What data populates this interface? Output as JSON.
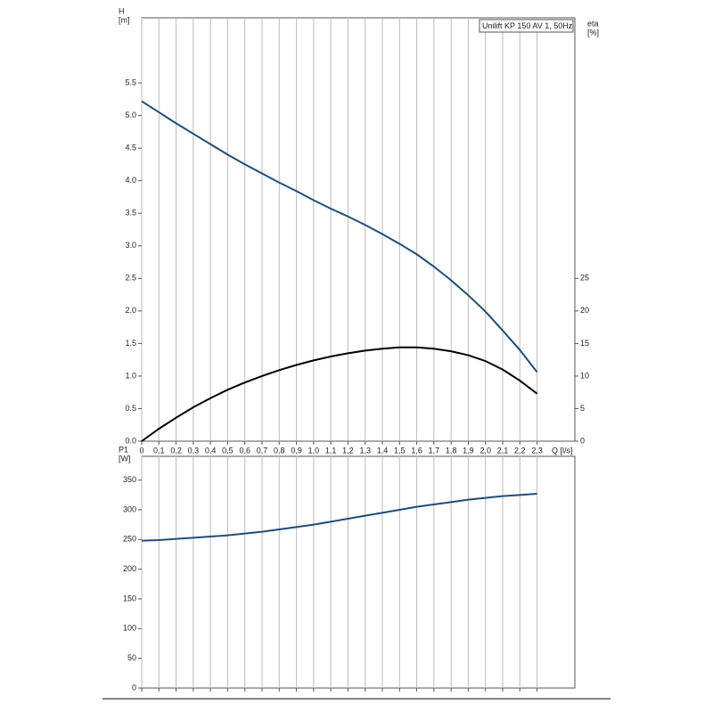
{
  "chart_data": [
    {
      "type": "line",
      "legend_title": "Unilift KP 150 AV 1, 50Hz",
      "ylabel": "H",
      "yunit": "[m]",
      "y2label": "eta",
      "y2unit": "[%]",
      "xlabel": "Q [l/s]",
      "x": [
        0,
        0.1,
        0.2,
        0.3,
        0.4,
        0.5,
        0.6,
        0.7,
        0.8,
        0.9,
        1.0,
        1.1,
        1.2,
        1.3,
        1.4,
        1.5,
        1.6,
        1.7,
        1.8,
        1.9,
        2.0,
        2.1,
        2.2,
        2.3
      ],
      "series": [
        {
          "color": "#1f4e79",
          "values": [
            5.22,
            5.05,
            4.88,
            4.72,
            4.56,
            4.4,
            4.25,
            4.11,
            3.97,
            3.84,
            3.7,
            3.57,
            3.45,
            3.32,
            3.18,
            3.03,
            2.87,
            2.68,
            2.47,
            2.24,
            1.99,
            1.7,
            1.4,
            1.06
          ]
        },
        {
          "color": "#000000",
          "axis": "y2",
          "values": [
            0,
            1.9,
            3.6,
            5.2,
            6.6,
            7.9,
            9.0,
            10.0,
            10.9,
            11.7,
            12.4,
            13.0,
            13.5,
            13.9,
            14.2,
            14.4,
            14.4,
            14.2,
            13.8,
            13.2,
            12.3,
            11.0,
            9.3,
            7.3
          ]
        }
      ],
      "xlim": [
        0,
        2.52
      ],
      "ylim": [
        0,
        6.5
      ],
      "y2lim": [
        0,
        65
      ],
      "xticks": [
        0,
        {
          "value": 0.1,
          "label": "0,1"
        },
        {
          "value": 0.2,
          "label": "0,2"
        },
        {
          "value": 0.3,
          "label": "0,3"
        },
        {
          "value": 0.4,
          "label": "0,4"
        },
        {
          "value": 0.5,
          "label": "0,5"
        },
        {
          "value": 0.6,
          "label": "0,6"
        },
        {
          "value": 0.7,
          "label": "0,7"
        },
        {
          "value": 0.8,
          "label": "0,8"
        },
        {
          "value": 0.9,
          "label": "0,9"
        },
        {
          "value": 1.0,
          "label": "1,0"
        },
        {
          "value": 1.1,
          "label": "1,1"
        },
        {
          "value": 1.2,
          "label": "1,2"
        },
        {
          "value": 1.3,
          "label": "1,3"
        },
        {
          "value": 1.4,
          "label": "1,4"
        },
        {
          "value": 1.5,
          "label": "1,5"
        },
        {
          "value": 1.6,
          "label": "1,6"
        },
        {
          "value": 1.7,
          "label": "1,7"
        },
        {
          "value": 1.8,
          "label": "1,8"
        },
        {
          "value": 1.9,
          "label": "1,9"
        },
        {
          "value": 2.0,
          "label": "2,0"
        },
        {
          "value": 2.1,
          "label": "2,1"
        },
        {
          "value": 2.2,
          "label": "2,2"
        },
        {
          "value": 2.3,
          "label": "2,3"
        }
      ],
      "yticks": [
        {
          "value": 0,
          "label": "0.0"
        },
        0.5,
        {
          "value": 1,
          "label": "1.0"
        },
        1.5,
        {
          "value": 2,
          "label": "2.0"
        },
        2.5,
        {
          "value": 3,
          "label": "3.0"
        },
        3.5,
        {
          "value": 4,
          "label": "4.0"
        },
        4.5,
        {
          "value": 5,
          "label": "5.0"
        },
        5.5
      ],
      "y2ticks": [
        0,
        5,
        10,
        15,
        20,
        25
      ],
      "grid": "x"
    },
    {
      "type": "line",
      "ylabel": "P1",
      "yunit": "[W]",
      "x": [
        0,
        0.1,
        0.2,
        0.3,
        0.4,
        0.5,
        0.6,
        0.7,
        0.8,
        0.9,
        1.0,
        1.1,
        1.2,
        1.3,
        1.4,
        1.5,
        1.6,
        1.7,
        1.8,
        1.9,
        2.0,
        2.1,
        2.2,
        2.3
      ],
      "series": [
        {
          "color": "#1f4e79",
          "values": [
            248,
            249,
            251,
            253,
            255,
            257,
            260,
            263,
            267,
            271,
            275,
            280,
            285,
            290,
            295,
            300,
            305,
            309,
            313,
            317,
            320,
            323,
            325,
            327
          ]
        }
      ],
      "xlim": [
        0,
        2.52
      ],
      "ylim": [
        0,
        390
      ],
      "xticks": [
        0,
        0.1,
        0.2,
        0.3,
        0.4,
        0.5,
        0.6,
        0.7,
        0.8,
        0.9,
        1,
        1.1,
        1.2,
        1.3,
        1.4,
        1.5,
        1.6,
        1.7,
        1.8,
        1.9,
        2,
        2.1,
        2.2,
        2.3
      ],
      "xtick_labels": false,
      "yticks": [
        0,
        50,
        100,
        150,
        200,
        250,
        300,
        350
      ],
      "grid": "x"
    }
  ]
}
